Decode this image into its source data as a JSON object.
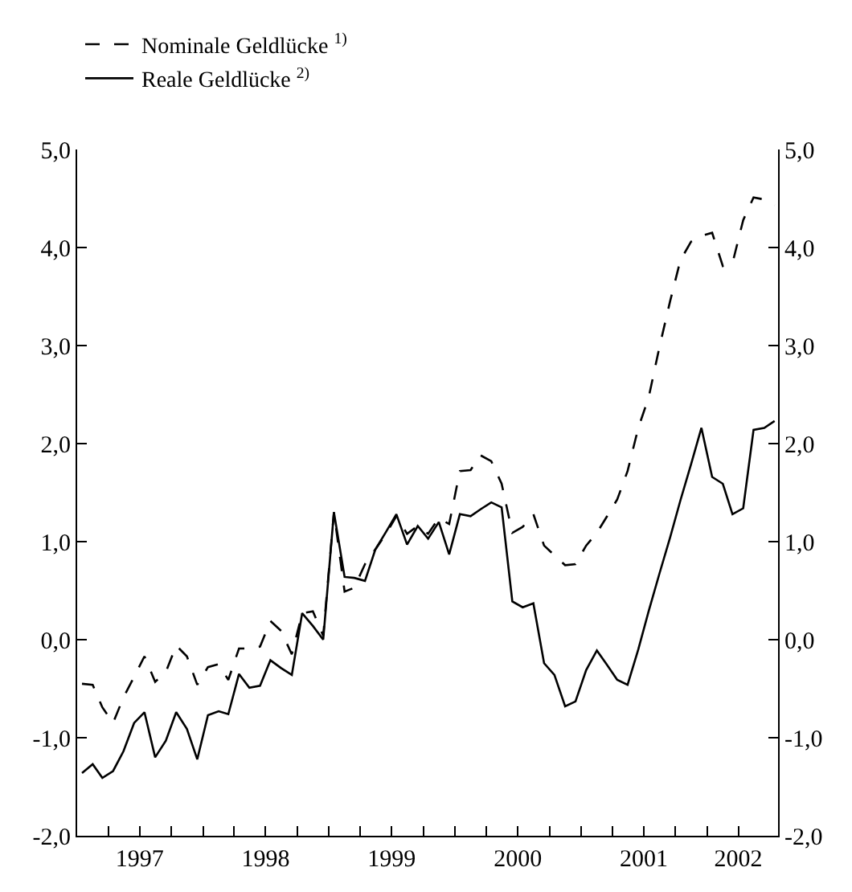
{
  "chart_data": {
    "type": "line",
    "x": [
      "1997-01-15",
      "1997-02-15",
      "1997-03-15",
      "1997-04-15",
      "1997-05-15",
      "1997-06-15",
      "1997-07-15",
      "1997-08-15",
      "1997-09-15",
      "1997-10-15",
      "1997-11-15",
      "1997-12-15",
      "1998-01-15",
      "1998-02-15",
      "1998-03-15",
      "1998-04-15",
      "1998-05-15",
      "1998-06-15",
      "1998-07-15",
      "1998-08-15",
      "1998-09-15",
      "1998-10-15",
      "1998-11-15",
      "1998-12-15",
      "1999-01-15",
      "1999-02-15",
      "1999-03-15",
      "1999-04-15",
      "1999-05-15",
      "1999-06-15",
      "1999-07-15",
      "1999-08-15",
      "1999-09-15",
      "1999-10-15",
      "1999-11-15",
      "1999-12-15",
      "2000-01-15",
      "2000-02-15",
      "2000-03-15",
      "2000-04-15",
      "2000-05-15",
      "2000-06-15",
      "2000-07-15",
      "2000-08-15",
      "2000-09-15",
      "2000-10-15",
      "2000-11-15",
      "2000-12-15",
      "2001-01-15",
      "2001-02-15",
      "2001-03-15",
      "2001-04-15",
      "2001-05-15",
      "2001-06-15",
      "2001-07-15",
      "2001-08-15",
      "2001-09-15",
      "2001-10-15",
      "2001-11-15",
      "2001-12-15",
      "2002-01-15",
      "2002-02-15",
      "2002-03-15",
      "2002-04-15",
      "2002-05-15",
      "2002-06-15",
      "2002-07-15"
    ],
    "series": [
      {
        "name": "Nominale Geldlücke $^{1)}$",
        "color": "#000000",
        "line_style": "dashed",
        "values": [
          -0.45,
          -0.46,
          -0.69,
          -0.85,
          -0.59,
          -0.38,
          -0.17,
          -0.43,
          -0.33,
          -0.06,
          -0.17,
          -0.46,
          -0.28,
          -0.25,
          -0.41,
          -0.09,
          -0.09,
          -0.07,
          0.19,
          0.09,
          -0.15,
          0.27,
          0.29,
          0.04,
          1.3,
          0.49,
          0.53,
          0.77,
          0.92,
          1.08,
          1.26,
          1.08,
          1.16,
          1.08,
          1.24,
          1.18,
          1.72,
          1.73,
          1.88,
          1.82,
          1.59,
          1.09,
          1.15,
          1.28,
          0.96,
          0.86,
          0.76,
          0.77,
          0.96,
          1.09,
          1.25,
          1.43,
          1.72,
          2.16,
          2.47,
          2.98,
          3.45,
          3.87,
          4.06,
          4.12,
          4.15,
          3.81,
          3.84,
          4.28,
          4.51,
          4.49,
          4.43
        ]
      },
      {
        "name": "Reale Geldlücke $^{2)}$",
        "color": "#000000",
        "line_style": "solid",
        "values": [
          -1.36,
          -1.27,
          -1.41,
          -1.34,
          -1.14,
          -0.85,
          -0.74,
          -1.2,
          -1.03,
          -0.74,
          -0.91,
          -1.22,
          -0.77,
          -0.73,
          -0.76,
          -0.35,
          -0.49,
          -0.47,
          -0.21,
          -0.29,
          -0.36,
          0.27,
          0.14,
          0.0,
          1.3,
          0.64,
          0.63,
          0.6,
          0.92,
          1.1,
          1.28,
          0.97,
          1.16,
          1.03,
          1.2,
          0.87,
          1.28,
          1.26,
          1.33,
          1.4,
          1.35,
          0.39,
          0.33,
          0.37,
          -0.24,
          -0.36,
          -0.68,
          -0.63,
          -0.31,
          -0.11,
          -0.25,
          -0.41,
          -0.46,
          -0.1,
          0.29,
          0.67,
          1.04,
          1.42,
          1.79,
          2.16,
          1.66,
          1.59,
          1.28,
          1.34,
          2.14,
          2.16,
          2.23
        ]
      }
    ],
    "xlim": [
      "1997-01-01",
      "2002-07-25"
    ],
    "xticks": [
      {
        "value": "1997-04-01",
        "label": null
      },
      {
        "value": "1997-07-01",
        "label": "1997"
      },
      {
        "value": "1997-10-01",
        "label": null
      },
      {
        "value": "1998-01-01",
        "label": null
      },
      {
        "value": "1998-04-01",
        "label": null
      },
      {
        "value": "1998-07-01",
        "label": "1998"
      },
      {
        "value": "1998-10-01",
        "label": null
      },
      {
        "value": "1999-01-01",
        "label": null
      },
      {
        "value": "1999-04-01",
        "label": null
      },
      {
        "value": "1999-07-01",
        "label": "1999"
      },
      {
        "value": "1999-10-01",
        "label": null
      },
      {
        "value": "2000-01-01",
        "label": null
      },
      {
        "value": "2000-04-01",
        "label": null
      },
      {
        "value": "2000-07-01",
        "label": "2000"
      },
      {
        "value": "2000-10-01",
        "label": null
      },
      {
        "value": "2001-01-01",
        "label": null
      },
      {
        "value": "2001-04-01",
        "label": null
      },
      {
        "value": "2001-07-01",
        "label": "2001"
      },
      {
        "value": "2001-10-01",
        "label": null
      },
      {
        "value": "2002-01-01",
        "label": null
      },
      {
        "value": "2002-04-01",
        "label": "2002"
      }
    ],
    "ylim": [
      -2,
      5
    ],
    "yticks": [
      {
        "value": -2,
        "label": "-2,0"
      },
      {
        "value": -1,
        "label": "-1,0"
      },
      {
        "value": 0,
        "label": "0,0"
      },
      {
        "value": 1,
        "label": "1,0"
      },
      {
        "value": 2,
        "label": "2,0"
      },
      {
        "value": 3,
        "label": "3,0"
      },
      {
        "value": 4,
        "label": "4,0"
      },
      {
        "value": 5,
        "label": "5,0"
      }
    ],
    "y2lim": [
      -2,
      5
    ],
    "y2ticks": [
      {
        "value": -2,
        "label": "-2,0"
      },
      {
        "value": -1,
        "label": "-1,0"
      },
      {
        "value": 0,
        "label": "0,0"
      },
      {
        "value": 1,
        "label": "1,0"
      },
      {
        "value": 2,
        "label": "2,0"
      },
      {
        "value": 3,
        "label": "3,0"
      },
      {
        "value": 4,
        "label": "4,0"
      },
      {
        "value": 5,
        "label": "5,0"
      }
    ],
    "legend": "top left",
    "marker": "none"
  }
}
